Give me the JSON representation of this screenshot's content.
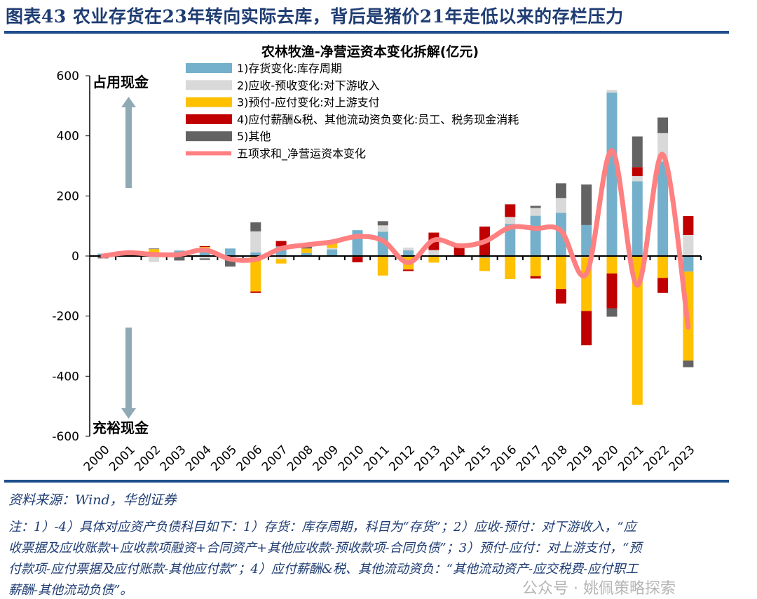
{
  "header": {
    "title": "图表43 农业存货在23年转向实际去库，背后是猪价21年走低以来的存栏压力"
  },
  "chart_data": {
    "type": "bar",
    "stacked": true,
    "title": "农林牧渔-净营运资本变化拆解(亿元)",
    "categories": [
      "2000",
      "2001",
      "2002",
      "2003",
      "2004",
      "2005",
      "2006",
      "2007",
      "2008",
      "2009",
      "2010",
      "2011",
      "2012",
      "2013",
      "2014",
      "2015",
      "2016",
      "2017",
      "2018",
      "2019",
      "2020",
      "2021",
      "2022",
      "2023"
    ],
    "ylim": [
      -600,
      600
    ],
    "yticks": [
      600,
      400,
      200,
      0,
      -200,
      -400,
      -600
    ],
    "grid": false,
    "legend_position": "top-left",
    "annotations": {
      "top": "占用现金",
      "bottom": "充裕现金"
    },
    "series": [
      {
        "name": "1)存货变化:库存周期",
        "color": "#74B0CB",
        "values": [
          8,
          0,
          5,
          18,
          25,
          25,
          12,
          32,
          10,
          22,
          86,
          81,
          19,
          3,
          -3,
          -6,
          107,
          134,
          144,
          103,
          544,
          249,
          314,
          -52
        ]
      },
      {
        "name": "2)应收-预收变化:对下游收入",
        "color": "#D9D9D9",
        "values": [
          -3,
          2,
          -20,
          2,
          -8,
          -7,
          70,
          -10,
          0,
          5,
          0,
          21,
          9,
          17,
          0,
          0,
          23,
          26,
          49,
          -4,
          9,
          17,
          95,
          70
        ]
      },
      {
        "name": "3)预付-应付变化:对上游支付",
        "color": "#FFC000",
        "values": [
          0,
          3,
          18,
          0,
          5,
          -3,
          -118,
          -15,
          15,
          15,
          -3,
          -65,
          -45,
          -22,
          0,
          -44,
          -77,
          -67,
          -110,
          -179,
          -58,
          -495,
          -73,
          -296
        ]
      },
      {
        "name": "4)应付薪酬&税、其他流动资负变化:员工、税务现金消耗",
        "color": "#C00000",
        "values": [
          0,
          3,
          0,
          0,
          3,
          0,
          -5,
          18,
          0,
          0,
          -18,
          0,
          -5,
          58,
          37,
          98,
          42,
          -8,
          -48,
          -114,
          -116,
          30,
          -50,
          63
        ]
      },
      {
        "name": "5)其他",
        "color": "#636363",
        "values": [
          -5,
          3,
          2,
          -15,
          -5,
          -25,
          30,
          0,
          12,
          5,
          0,
          14,
          0,
          0,
          0,
          0,
          0,
          7,
          49,
          135,
          -28,
          102,
          52,
          -22
        ]
      }
    ],
    "line": {
      "name": "五项求和_净营运资本变化",
      "color": "#FF8080",
      "values": [
        0,
        11,
        5,
        5,
        20,
        -10,
        -11,
        25,
        37,
        47,
        65,
        51,
        -22,
        53,
        34,
        48,
        95,
        92,
        84,
        -59,
        351,
        -97,
        338,
        -237
      ]
    }
  },
  "footer": {
    "source": "资料来源：Wind，华创证券",
    "note_lines": [
      "注：1）-4）具体对应资产负债科目如下：1）存货：库存周期，科目为“存货”；2）应收-预付：对下游收入，“应",
      "收票据及应收账款+应收款项融资+合同资产+其他应收款-预收款项-合同负债”；3）预付-应付：对上游支付，“预",
      "付款项-应付票据及应付账款-其他应付款”；4）应付薪酬&税、其他流动资负：“其他流动资产-应交税费-应付职工",
      "薪酬-其他流动负债”。"
    ],
    "watermark": "公众号 · 姚佩策略探索"
  }
}
